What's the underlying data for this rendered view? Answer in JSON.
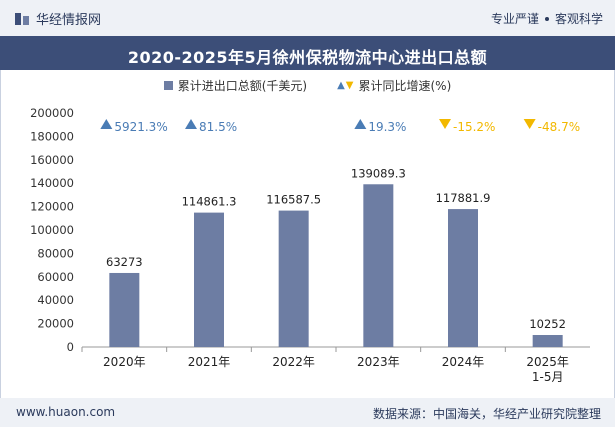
{
  "header": {
    "brand": "华经情报网",
    "right_items": [
      "专业严谨",
      "客观科学"
    ]
  },
  "title": "2020-2025年5月徐州保税物流中心进出口总额",
  "legend": {
    "bar_label": "累计进出口总额(千美元)",
    "growth_label": "累计同比增速(%)"
  },
  "colors": {
    "bar": "#6d7da3",
    "up": "#4a7cb5",
    "down": "#f2b800",
    "title_bg": "#3c4e78"
  },
  "chart_data": {
    "type": "bar",
    "title": "2020-2025年5月徐州保税物流中心进出口总额",
    "categories": [
      "2020年",
      "2021年",
      "2022年",
      "2023年",
      "2024年",
      "2025年\n1-5月"
    ],
    "series": [
      {
        "name": "累计进出口总额(千美元)",
        "values": [
          63273,
          114861.3,
          116587.5,
          139089.3,
          117881.9,
          10252
        ],
        "labels": [
          "63273",
          "114861.3",
          "116587.5",
          "139089.3",
          "117881.9",
          "10252"
        ]
      },
      {
        "name": "累计同比增速(%)",
        "values": [
          5921.3,
          81.5,
          null,
          19.3,
          -15.2,
          -48.7
        ],
        "labels": [
          "5921.3%",
          "81.5%",
          "",
          "19.3%",
          "-15.2%",
          "-48.7%"
        ]
      }
    ],
    "ylim": [
      0,
      200000
    ],
    "yticks": [
      0,
      20000,
      40000,
      60000,
      80000,
      100000,
      120000,
      140000,
      160000,
      180000,
      200000
    ],
    "xlabel": "",
    "ylabel": ""
  },
  "footer": {
    "website": "www.huaon.com",
    "source": "数据来源：中国海关，华经产业研究院整理"
  }
}
